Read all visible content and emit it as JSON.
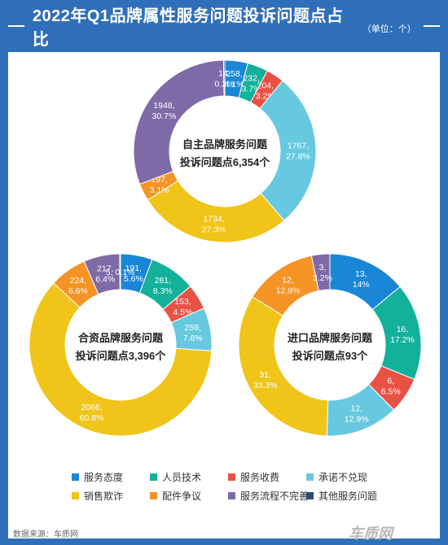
{
  "header": {
    "title": "2022年Q1品牌属性服务问题投诉问题点占比",
    "unit": "（单位：个）"
  },
  "source": "数据来源：车质网",
  "watermark": "车质网",
  "colors": {
    "background": "#2f6fba",
    "categories": [
      "#1a86d6",
      "#13b19a",
      "#ea5145",
      "#67c9e0",
      "#f0c419",
      "#f59425",
      "#7f6aa8",
      "#2e4b74"
    ]
  },
  "legend": [
    "服务态度",
    "人员技术",
    "服务收费",
    "承诺不兑现",
    "销售欺诈",
    "配件争议",
    "服务流程不完善",
    "其他服务问题"
  ],
  "chart_data": [
    {
      "type": "pie",
      "center_label": [
        "自主品牌服务问题",
        "投诉问题点6,354个"
      ],
      "categories": [
        "服务态度",
        "人员技术",
        "服务收费",
        "承诺不兑现",
        "销售欺诈",
        "配件争议",
        "服务流程不完善",
        "其他服务问题"
      ],
      "values": [
        258,
        232,
        204,
        1767,
        1734,
        197,
        1948,
        14
      ],
      "labels": [
        "258,\n4.1%",
        "232,\n3.7%",
        "204,\n3.2%",
        "1767,\n27.8%",
        "1734,\n27.3%",
        "197,\n3.1%",
        "1948,\n30.7%",
        "14,\n0.2%"
      ]
    },
    {
      "type": "pie",
      "center_label": [
        "合资品牌服务问题",
        "投诉问题点3,396个"
      ],
      "categories": [
        "服务态度",
        "人员技术",
        "服务收费",
        "承诺不兑现",
        "销售欺诈",
        "配件争议",
        "服务流程不完善",
        "其他服务问题"
      ],
      "values": [
        191,
        281,
        153,
        259,
        2066,
        224,
        217,
        5
      ],
      "labels": [
        "191,\n5.6%",
        "281,\n8.3%",
        "153,\n4.5%",
        "259,\n7.6%",
        "2066,\n60.8%",
        "224,\n6.6%",
        "217,\n6.4%",
        "5, 0.1%"
      ]
    },
    {
      "type": "pie",
      "center_label": [
        "进口品牌服务问题",
        "投诉问题点93个"
      ],
      "categories": [
        "服务态度",
        "人员技术",
        "服务收费",
        "承诺不兑现",
        "销售欺诈",
        "配件争议",
        "服务流程不完善"
      ],
      "values": [
        13,
        16,
        6,
        12,
        31,
        12,
        3
      ],
      "labels": [
        "13,\n14%",
        "16,\n17.2%",
        "6,\n6.5%",
        "12,\n12.9%",
        "31,\n33.3%",
        "12,\n12.9%",
        "3,\n3.2%"
      ]
    }
  ]
}
